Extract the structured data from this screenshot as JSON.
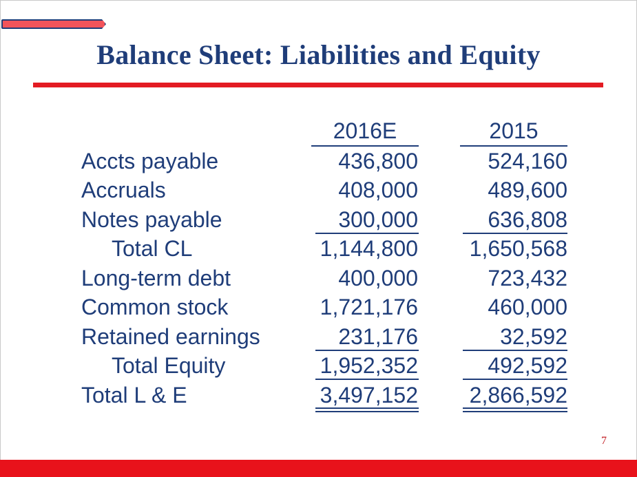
{
  "title": "Balance Sheet: Liabilities and Equity",
  "page_number": "7",
  "columns": [
    "2016E",
    "2015"
  ],
  "rows": [
    {
      "label": "Accts payable",
      "v1": "436,800",
      "v2": "524,160"
    },
    {
      "label": "Accruals",
      "v1": "408,000",
      "v2": "489,600"
    },
    {
      "label": "Notes payable",
      "v1": "300,000",
      "v2": "636,808"
    },
    {
      "label": "Total CL",
      "v1": "1,144,800",
      "v2": "1,650,568"
    },
    {
      "label": "Long-term debt",
      "v1": "400,000",
      "v2": "723,432"
    },
    {
      "label": "Common stock",
      "v1": "1,721,176",
      "v2": "460,000"
    },
    {
      "label": "Retained earnings",
      "v1": "231,176",
      "v2": "32,592"
    },
    {
      "label": "Total Equity",
      "v1": "1,952,352",
      "v2": "492,592"
    },
    {
      "label": "Total L & E",
      "v1": "3,497,152",
      "v2": "2,866,592"
    }
  ],
  "colors": {
    "text": "#1f3d79",
    "accent_red": "#e31b23"
  }
}
